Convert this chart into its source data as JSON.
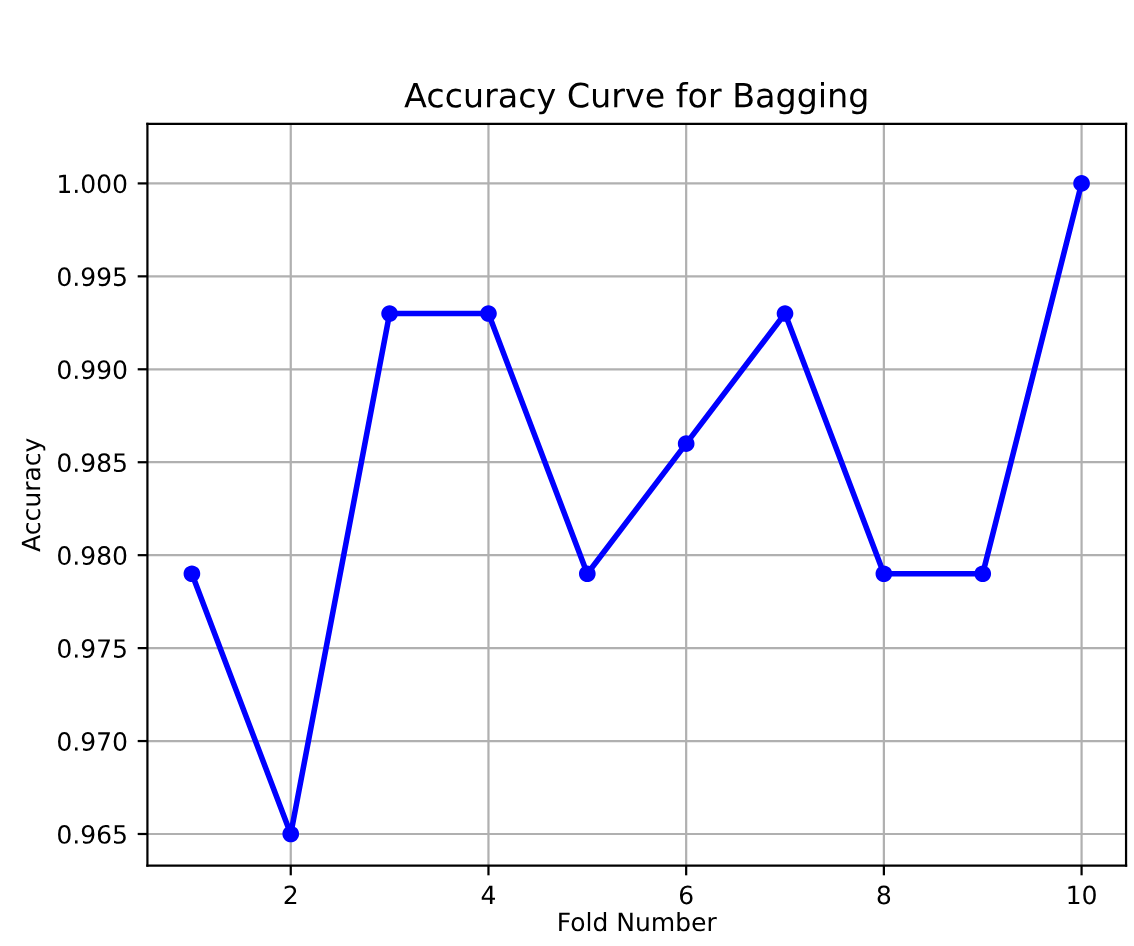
{
  "chart_data": {
    "type": "line",
    "title": "Accuracy Curve for Bagging",
    "xlabel": "Fold Number",
    "ylabel": "Accuracy",
    "x": [
      1,
      2,
      3,
      4,
      5,
      6,
      7,
      8,
      9,
      10
    ],
    "series": [
      {
        "color": "#0000ff",
        "values": [
          0.979,
          0.965,
          0.993,
          0.993,
          0.979,
          0.986,
          0.993,
          0.979,
          0.979,
          1.0
        ]
      }
    ],
    "xlim": [
      0.55,
      10.45
    ],
    "ylim": [
      0.9633,
      1.0032
    ],
    "xticks": [
      2,
      4,
      6,
      8,
      10
    ],
    "yticks": [
      {
        "value": 0.965,
        "label": "0.965"
      },
      {
        "value": 0.97,
        "label": "0.970"
      },
      {
        "value": 0.975,
        "label": "0.975"
      },
      {
        "value": 0.98,
        "label": "0.980"
      },
      {
        "value": 0.985,
        "label": "0.985"
      },
      {
        "value": 0.99,
        "label": "0.990"
      },
      {
        "value": 0.995,
        "label": "0.995"
      },
      {
        "value": 1.0,
        "label": "1.000"
      }
    ],
    "grid": true,
    "marker": "circle",
    "line_style": "solid"
  }
}
